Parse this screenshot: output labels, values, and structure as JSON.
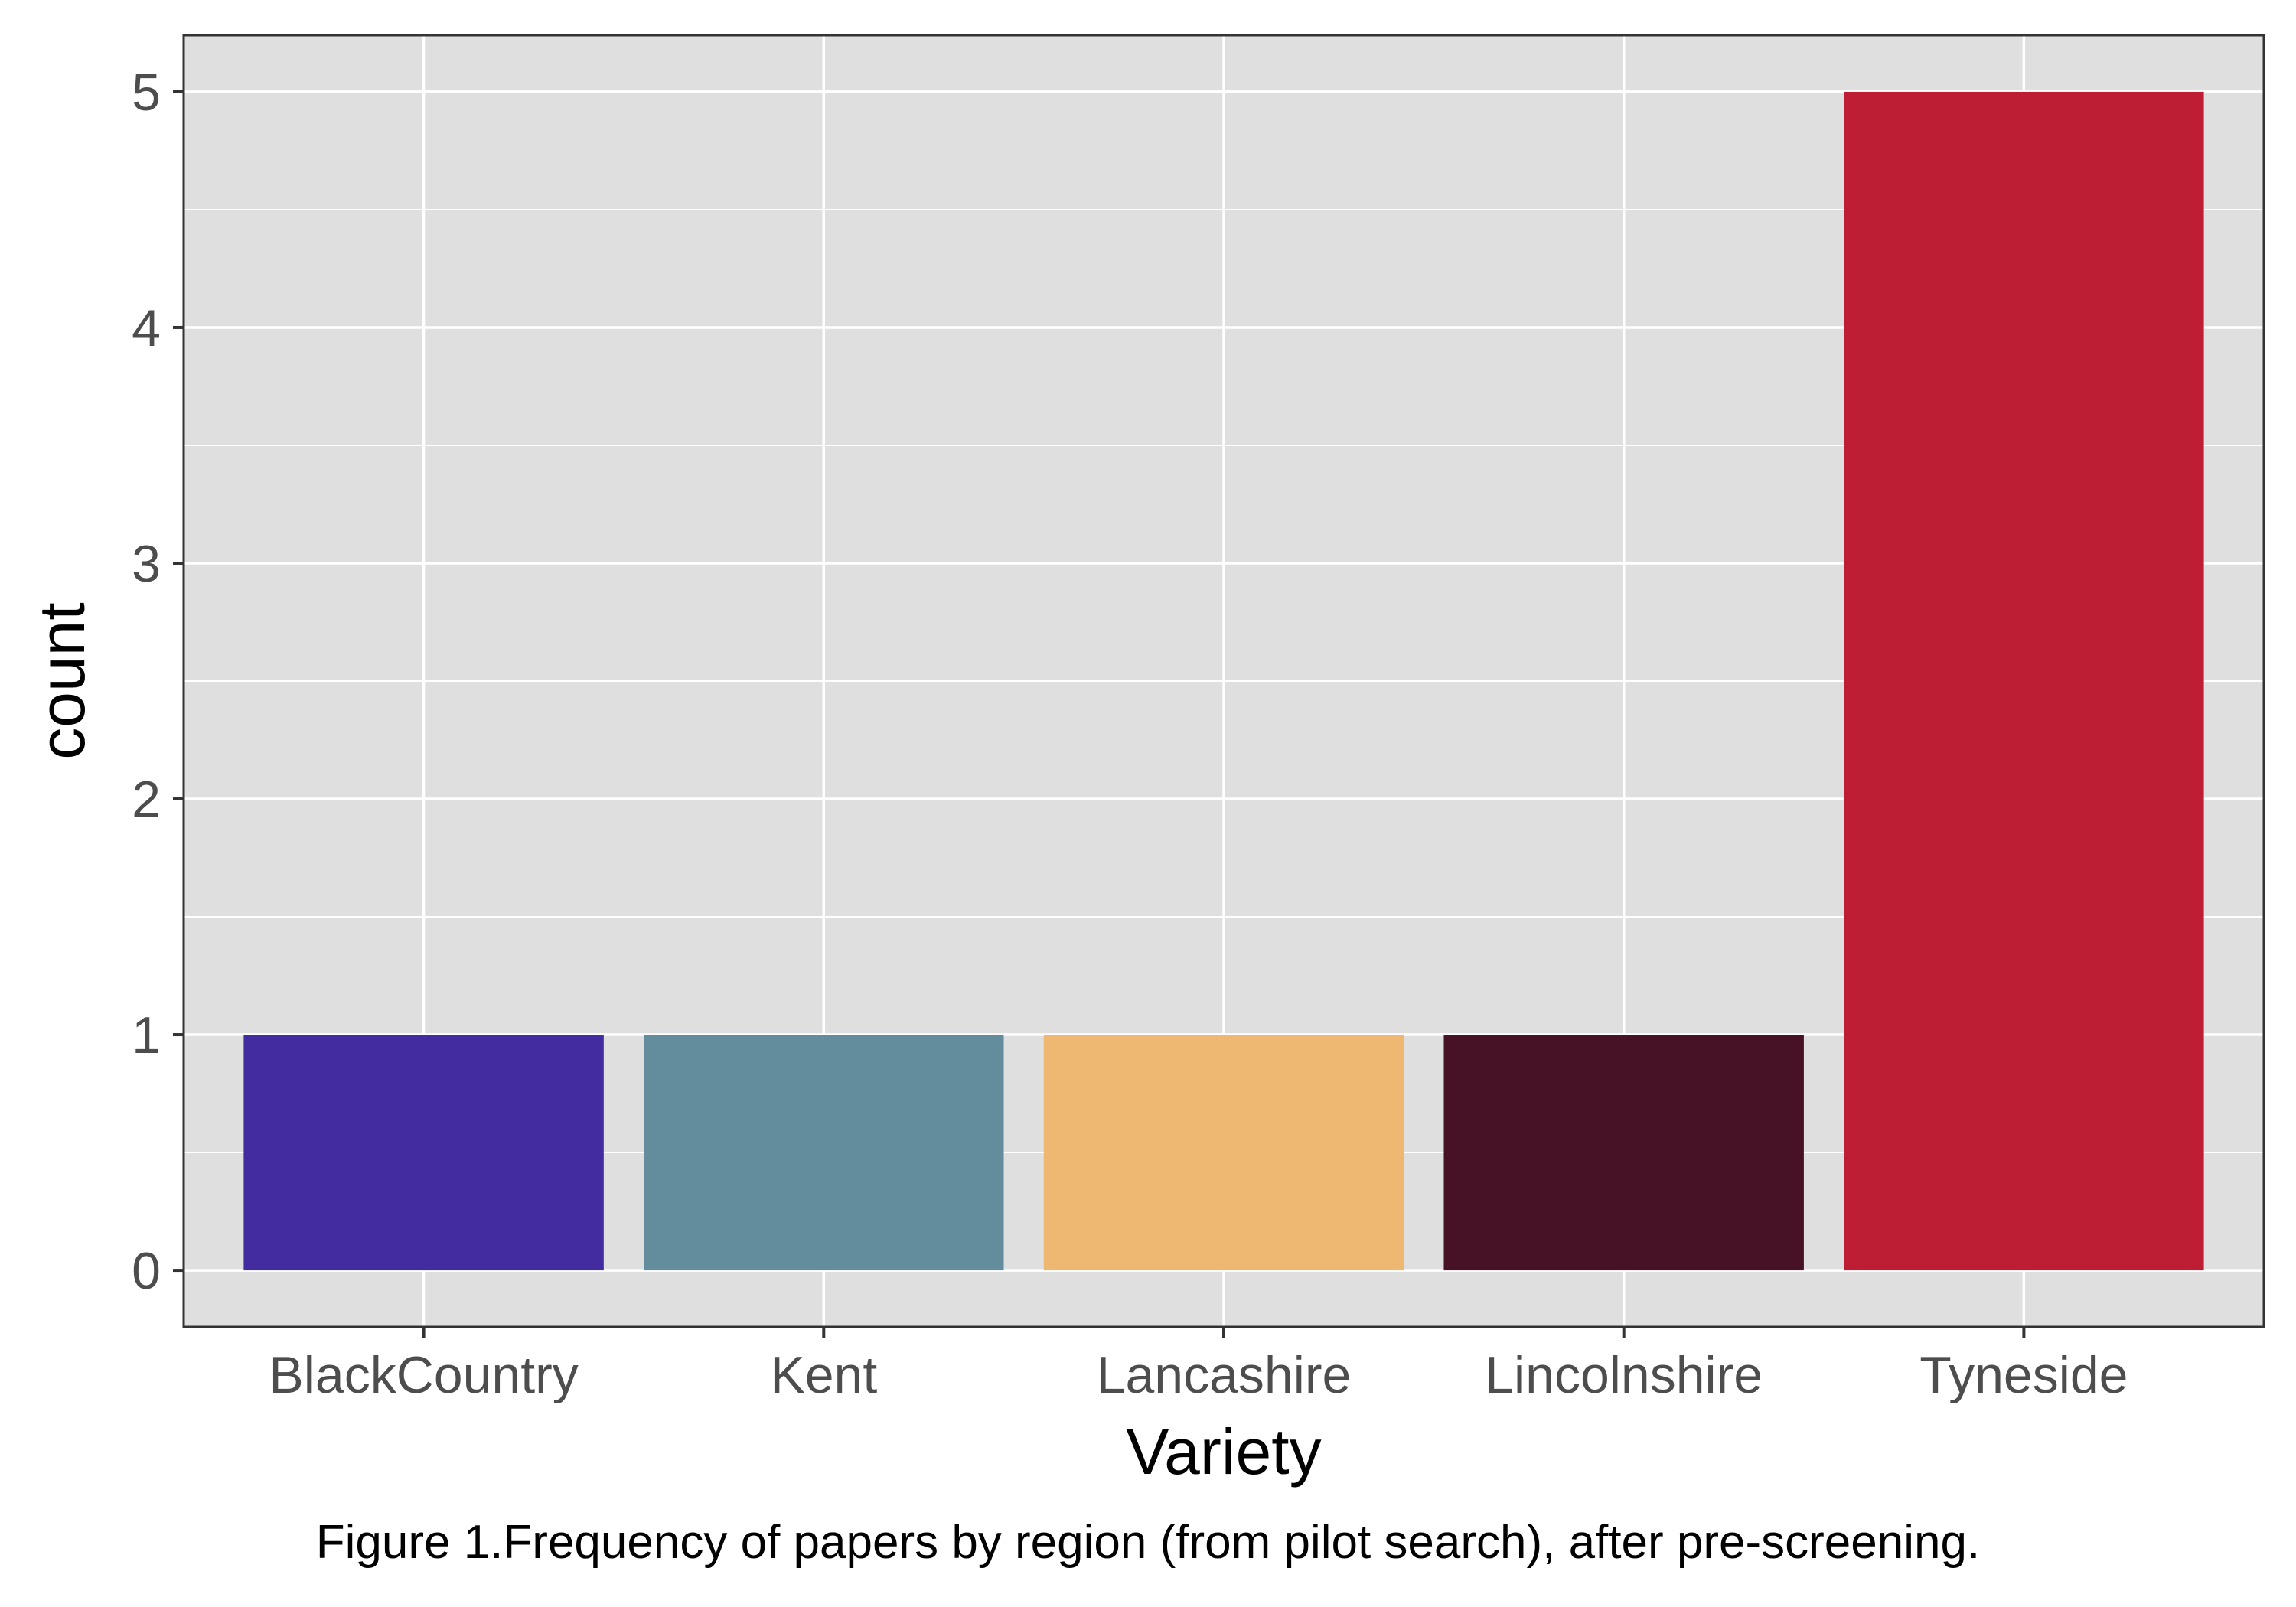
{
  "chart_data": {
    "type": "bar",
    "categories": [
      "BlackCountry",
      "Kent",
      "Lancashire",
      "Lincolnshire",
      "Tyneside"
    ],
    "values": [
      1,
      1,
      1,
      1,
      5
    ],
    "colors": [
      "#432ca0",
      "#638c9c",
      "#eeb872",
      "#481226",
      "#be1e33"
    ],
    "xlabel": "Variety",
    "ylabel": "count",
    "ylim": [
      -0.24,
      5.24
    ],
    "yticks": [
      "0",
      "1",
      "2",
      "3",
      "4",
      "5"
    ],
    "grid": true,
    "panel_background": "#dfdfdf",
    "legend": "none"
  },
  "caption": "Figure 1.Frequency of papers by region (from pilot search), after pre-screening."
}
